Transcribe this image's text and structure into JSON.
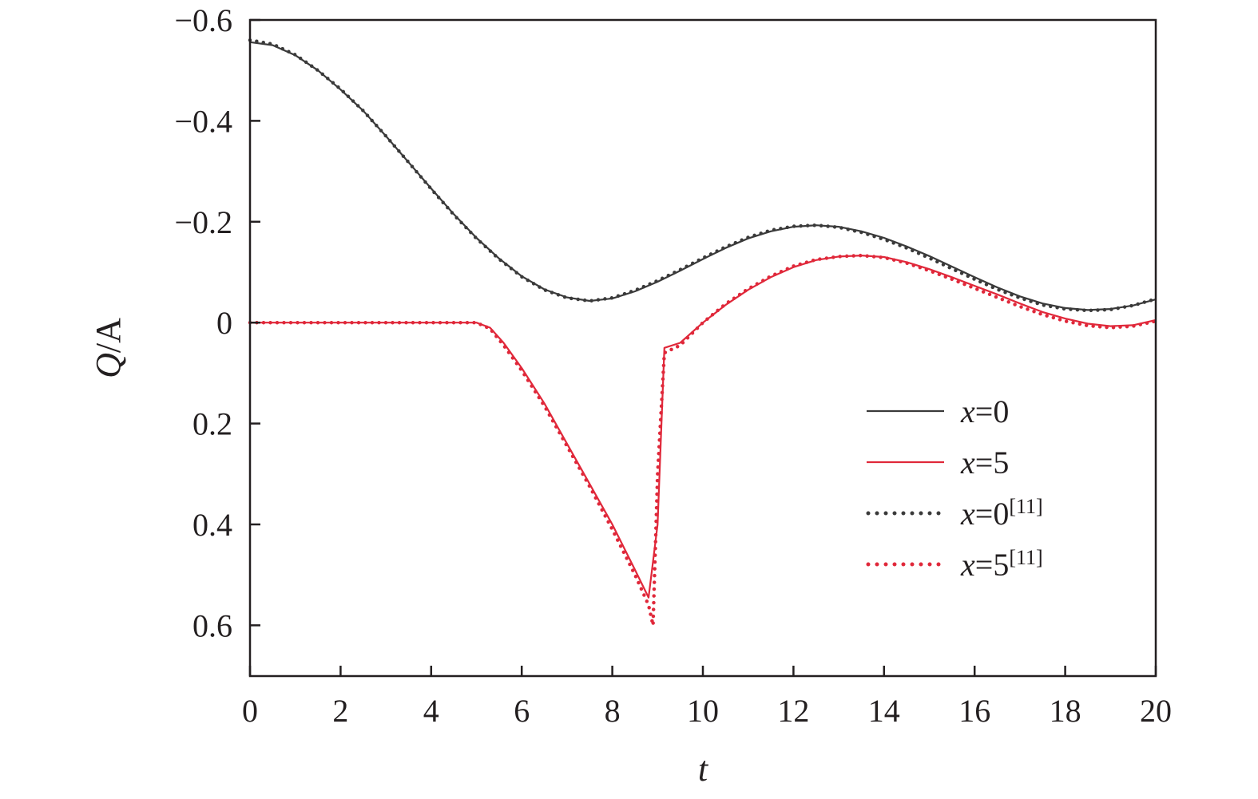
{
  "chart_data": {
    "type": "line",
    "xlabel": "t",
    "ylabel": {
      "italic": "Q",
      "rest": "/A"
    },
    "xlim": [
      0,
      20
    ],
    "ylim": [
      -0.6,
      0.7
    ],
    "y_inverted": true,
    "grid": false,
    "legend_position": "right",
    "x_ticks": [
      0,
      2,
      4,
      6,
      8,
      10,
      12,
      14,
      16,
      18,
      20
    ],
    "y_ticks": [
      -0.6,
      -0.4,
      -0.2,
      0,
      0.2,
      0.4,
      0.6
    ],
    "y_tick_labels": [
      "−0.6",
      "−0.4",
      "−0.2",
      "0",
      "0.2",
      "0.4",
      "0.6"
    ],
    "series": [
      {
        "name": "x=0",
        "legend_var": "x",
        "legend_rest": "=0",
        "legend_ref": "",
        "color": "#3a3a3a",
        "style": "solid",
        "x": [
          0,
          0.5,
          1,
          1.5,
          2,
          2.5,
          3,
          3.5,
          4,
          4.5,
          5,
          5.5,
          6,
          6.5,
          7,
          7.5,
          8,
          8.5,
          9,
          9.5,
          10,
          10.5,
          11,
          11.5,
          12,
          12.5,
          13,
          13.5,
          14,
          14.5,
          15,
          15.5,
          16,
          16.5,
          17,
          17.5,
          18,
          18.5,
          19,
          19.5,
          20
        ],
        "y": [
          -0.556,
          -0.55,
          -0.53,
          -0.5,
          -0.462,
          -0.42,
          -0.37,
          -0.318,
          -0.266,
          -0.215,
          -0.168,
          -0.127,
          -0.092,
          -0.066,
          -0.05,
          -0.043,
          -0.048,
          -0.062,
          -0.081,
          -0.103,
          -0.126,
          -0.148,
          -0.167,
          -0.181,
          -0.19,
          -0.193,
          -0.19,
          -0.181,
          -0.168,
          -0.151,
          -0.132,
          -0.111,
          -0.09,
          -0.07,
          -0.052,
          -0.038,
          -0.029,
          -0.025,
          -0.027,
          -0.034,
          -0.046
        ]
      },
      {
        "name": "x=5",
        "legend_var": "x",
        "legend_rest": "=5",
        "legend_ref": "",
        "color": "#e0283a",
        "style": "solid",
        "x": [
          0,
          1,
          2,
          3,
          4,
          5,
          5.3,
          5.6,
          6,
          6.5,
          7,
          7.5,
          8,
          8.5,
          8.8,
          9.0,
          9.15,
          9.5,
          10,
          10.5,
          11,
          11.5,
          12,
          12.5,
          13,
          13.5,
          14,
          14.5,
          15,
          15.5,
          16,
          16.5,
          17,
          17.5,
          18,
          18.5,
          19,
          19.5,
          20
        ],
        "y": [
          0,
          0,
          0,
          0,
          0,
          0,
          0.01,
          0.04,
          0.09,
          0.16,
          0.24,
          0.32,
          0.4,
          0.49,
          0.545,
          0.4,
          0.05,
          0.04,
          0.0,
          -0.035,
          -0.065,
          -0.09,
          -0.11,
          -0.124,
          -0.131,
          -0.133,
          -0.13,
          -0.12,
          -0.106,
          -0.09,
          -0.073,
          -0.056,
          -0.038,
          -0.021,
          -0.008,
          0.002,
          0.007,
          0.005,
          -0.005
        ]
      },
      {
        "name": "x=0[11]",
        "legend_var": "x",
        "legend_rest": "=0",
        "legend_ref": "[11]",
        "color": "#3a3a3a",
        "style": "dotted",
        "x": [
          0,
          0.5,
          1,
          1.5,
          2,
          2.5,
          3,
          3.5,
          4,
          4.5,
          5,
          5.5,
          6,
          6.5,
          7,
          7.5,
          8,
          8.5,
          9,
          9.5,
          10,
          10.5,
          11,
          11.5,
          12,
          12.5,
          13,
          13.5,
          14,
          14.5,
          15,
          15.5,
          16,
          16.5,
          17,
          17.5,
          18,
          18.5,
          19,
          19.5,
          20
        ],
        "y": [
          -0.56,
          -0.552,
          -0.531,
          -0.5,
          -0.463,
          -0.42,
          -0.37,
          -0.318,
          -0.265,
          -0.214,
          -0.167,
          -0.126,
          -0.091,
          -0.065,
          -0.049,
          -0.043,
          -0.049,
          -0.064,
          -0.083,
          -0.105,
          -0.128,
          -0.15,
          -0.169,
          -0.183,
          -0.191,
          -0.193,
          -0.189,
          -0.179,
          -0.165,
          -0.148,
          -0.128,
          -0.107,
          -0.086,
          -0.066,
          -0.049,
          -0.035,
          -0.027,
          -0.024,
          -0.026,
          -0.034,
          -0.047
        ]
      },
      {
        "name": "x=5[11]",
        "legend_var": "x",
        "legend_rest": "=5",
        "legend_ref": "[11]",
        "color": "#e0283a",
        "style": "dotted",
        "x": [
          0,
          1,
          2,
          3,
          4,
          5,
          5.3,
          5.6,
          6,
          6.5,
          7,
          7.5,
          8,
          8.5,
          8.8,
          8.9,
          9.0,
          9.15,
          9.5,
          10,
          10.5,
          11,
          11.5,
          12,
          12.5,
          13,
          13.5,
          14,
          14.5,
          15,
          15.5,
          16,
          16.5,
          17,
          17.5,
          18,
          18.5,
          19,
          19.5,
          20
        ],
        "y": [
          0,
          0,
          0,
          0,
          0,
          0,
          0.012,
          0.045,
          0.095,
          0.165,
          0.245,
          0.325,
          0.41,
          0.5,
          0.56,
          0.6,
          0.3,
          0.06,
          0.045,
          0.0,
          -0.037,
          -0.067,
          -0.092,
          -0.112,
          -0.125,
          -0.131,
          -0.133,
          -0.129,
          -0.118,
          -0.103,
          -0.086,
          -0.068,
          -0.05,
          -0.032,
          -0.016,
          -0.003,
          0.006,
          0.01,
          0.007,
          -0.003
        ]
      }
    ]
  }
}
